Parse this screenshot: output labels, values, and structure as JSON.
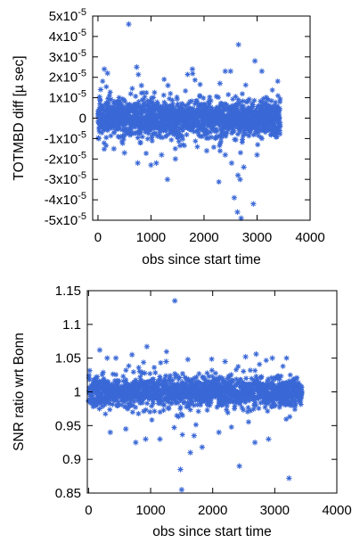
{
  "chart_data": [
    {
      "type": "scatter",
      "title": "",
      "xlabel": "obs since start time",
      "ylabel": "TOTMBD diff [µ sec]",
      "xlim": [
        -100,
        4000
      ],
      "ylim": [
        -5e-05,
        5e-05
      ],
      "xticks": [
        0,
        1000,
        2000,
        3000,
        4000
      ],
      "xtick_labels": [
        "0",
        "1000",
        "2000",
        "3000",
        "4000"
      ],
      "yticks": [
        5e-05,
        4e-05,
        3e-05,
        2e-05,
        1e-05,
        0,
        -1e-05,
        -2e-05,
        -3e-05,
        -4e-05,
        -5e-05
      ],
      "ytick_labels": [
        "5x10^-5",
        "4x10^-5",
        "3x10^-5",
        "2x10^-5",
        "1x10^-5",
        "0",
        "-1x10^-5",
        "-2x10^-5",
        "-3x10^-5",
        "-4x10^-5",
        "-5x10^-5"
      ],
      "marker": "asterisk",
      "color": "#3a68d6",
      "grid": false,
      "n_obs": 3440,
      "core_sigma": 4.5e-06,
      "outliers": [
        [
          580,
          4.6e-05
        ],
        [
          2650,
          3.6e-05
        ],
        [
          730,
          2.5e-05
        ],
        [
          120,
          2.4e-05
        ],
        [
          180,
          2.2e-05
        ],
        [
          2400,
          2.3e-05
        ],
        [
          2500,
          2.3e-05
        ],
        [
          1780,
          2.4e-05
        ],
        [
          2960,
          2.8e-05
        ],
        [
          3090,
          2.3e-05
        ],
        [
          1320,
          1.6e-05
        ],
        [
          820,
          1.6e-05
        ],
        [
          50,
          1.4e-05
        ],
        [
          2300,
          1.7e-05
        ],
        [
          1310,
          -3e-05
        ],
        [
          1100,
          -2.2e-05
        ],
        [
          1000,
          -2.3e-05
        ],
        [
          750,
          -2.2e-05
        ],
        [
          1460,
          -2e-05
        ],
        [
          2570,
          -3.9e-05
        ],
        [
          2630,
          -4.6e-05
        ],
        [
          2700,
          -4.9e-05
        ],
        [
          2680,
          -3e-05
        ],
        [
          2640,
          -2.8e-05
        ],
        [
          2930,
          -4.2e-05
        ],
        [
          2520,
          -2.2e-05
        ],
        [
          2750,
          -2.4e-05
        ],
        [
          3000,
          -1.8e-05
        ],
        [
          2050,
          -1.6e-05
        ],
        [
          1200,
          -1.8e-05
        ],
        [
          500,
          -1.7e-05
        ],
        [
          300,
          -1.5e-05
        ],
        [
          2400,
          -1.8e-05
        ]
      ]
    },
    {
      "type": "scatter",
      "title": "",
      "xlabel": "obs since start time",
      "ylabel": "SNR ratio wrt Bonn",
      "xlim": [
        -20,
        4000
      ],
      "ylim": [
        0.85,
        1.15
      ],
      "xticks": [
        0,
        1000,
        2000,
        3000,
        4000
      ],
      "xtick_labels": [
        "0",
        "1000",
        "2000",
        "3000",
        "4000"
      ],
      "yticks": [
        1.15,
        1.1,
        1.05,
        1,
        0.95,
        0.9,
        0.85
      ],
      "ytick_labels": [
        "1.15",
        "1.1",
        "1.05",
        "1",
        "0.95",
        "0.9",
        "0.85"
      ],
      "marker": "asterisk",
      "color": "#3a68d6",
      "grid": false,
      "n_obs": 3440,
      "core_center": 1.0,
      "core_sigma": 0.011,
      "outliers": [
        [
          1390,
          1.135
        ],
        [
          940,
          1.067
        ],
        [
          180,
          1.062
        ],
        [
          700,
          1.055
        ],
        [
          440,
          1.05
        ],
        [
          300,
          1.05
        ],
        [
          2700,
          1.056
        ],
        [
          2530,
          1.052
        ],
        [
          2960,
          1.05
        ],
        [
          1600,
          1.048
        ],
        [
          2200,
          1.045
        ],
        [
          1250,
          1.045
        ],
        [
          1500,
          0.855
        ],
        [
          1480,
          0.885
        ],
        [
          2430,
          0.89
        ],
        [
          3230,
          0.872
        ],
        [
          1640,
          0.91
        ],
        [
          760,
          0.925
        ],
        [
          1150,
          0.93
        ],
        [
          920,
          0.93
        ],
        [
          2680,
          0.925
        ],
        [
          1830,
          0.918
        ],
        [
          1700,
          0.935
        ],
        [
          350,
          0.94
        ],
        [
          2900,
          0.93
        ],
        [
          2100,
          0.94
        ],
        [
          600,
          0.945
        ]
      ]
    }
  ]
}
